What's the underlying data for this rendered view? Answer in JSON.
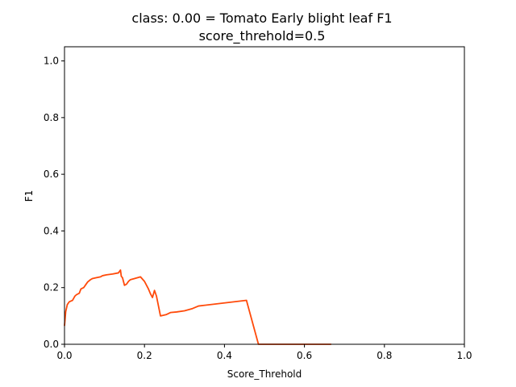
{
  "chart_data": {
    "type": "line",
    "title_line1": "class: 0.00 = Tomato Early blight leaf F1",
    "title_line2": "score_threhold=0.5",
    "xlabel": "Score_Threhold",
    "ylabel": "F1",
    "xlim": [
      0,
      1
    ],
    "ylim": [
      0,
      1.05
    ],
    "xticks": [
      "0.0",
      "0.2",
      "0.4",
      "0.6",
      "0.8",
      "1.0"
    ],
    "yticks": [
      "0.0",
      "0.2",
      "0.4",
      "0.6",
      "0.8",
      "1.0"
    ],
    "grid": false,
    "line_color": "#ff4a0a",
    "series": [
      {
        "x": [
          0.0,
          0.003,
          0.007,
          0.012,
          0.02,
          0.026,
          0.03,
          0.037,
          0.041,
          0.048,
          0.053,
          0.058,
          0.065,
          0.07,
          0.08,
          0.09,
          0.095,
          0.105,
          0.12,
          0.135,
          0.14,
          0.142,
          0.145,
          0.15,
          0.155,
          0.16,
          0.165,
          0.175,
          0.19,
          0.2,
          0.21,
          0.215,
          0.22,
          0.225,
          0.23,
          0.24,
          0.255,
          0.265,
          0.28,
          0.3,
          0.32,
          0.335,
          0.455,
          0.485,
          0.52,
          0.56,
          0.6,
          0.667
        ],
        "y": [
          0.065,
          0.115,
          0.14,
          0.15,
          0.155,
          0.17,
          0.175,
          0.18,
          0.195,
          0.2,
          0.21,
          0.22,
          0.228,
          0.232,
          0.235,
          0.238,
          0.242,
          0.245,
          0.248,
          0.252,
          0.262,
          0.24,
          0.235,
          0.208,
          0.212,
          0.222,
          0.228,
          0.232,
          0.238,
          0.222,
          0.195,
          0.178,
          0.165,
          0.19,
          0.17,
          0.1,
          0.105,
          0.112,
          0.114,
          0.118,
          0.126,
          0.135,
          0.155,
          0.0,
          0.0,
          0.0,
          0.0,
          0.0
        ]
      }
    ]
  }
}
